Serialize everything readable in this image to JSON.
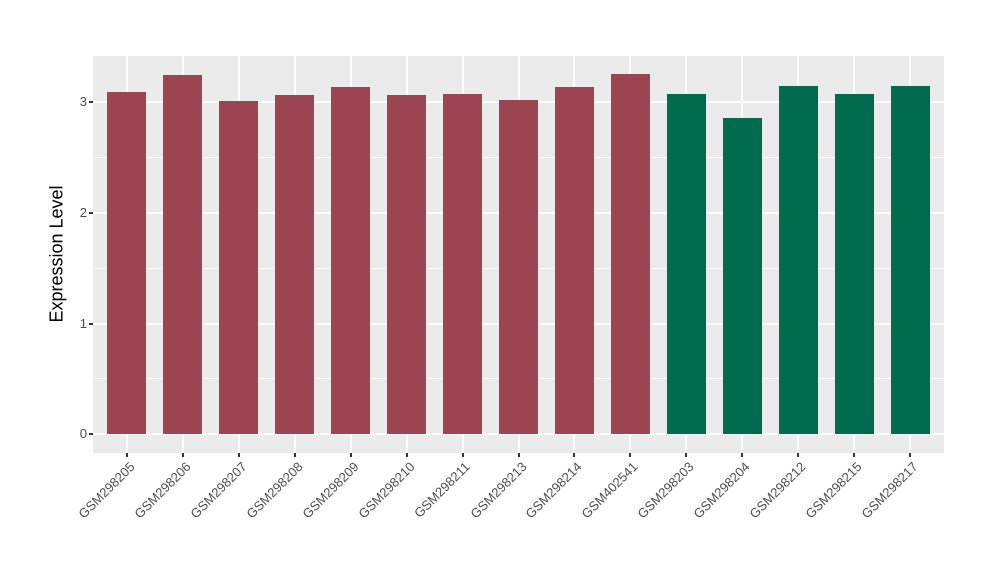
{
  "chart_data": {
    "type": "bar",
    "title": "",
    "xlabel": "",
    "ylabel": "Expression Level",
    "categories": [
      "GSM298205",
      "GSM298206",
      "GSM298207",
      "GSM298208",
      "GSM298209",
      "GSM298210",
      "GSM298211",
      "GSM298213",
      "GSM298214",
      "GSM402541",
      "GSM298203",
      "GSM298204",
      "GSM298212",
      "GSM298215",
      "GSM298217"
    ],
    "values": [
      3.09,
      3.25,
      3.01,
      3.07,
      3.14,
      3.07,
      3.08,
      3.02,
      3.14,
      3.26,
      3.08,
      2.86,
      3.15,
      3.08,
      3.15
    ],
    "bar_color_indices": [
      0,
      0,
      0,
      0,
      0,
      0,
      0,
      0,
      0,
      0,
      1,
      1,
      1,
      1,
      1
    ],
    "palette": [
      "#9C4451",
      "#006B4D"
    ],
    "yticks": [
      0,
      1,
      2,
      3
    ],
    "ytick_labels": [
      "0",
      "1",
      "2",
      "3"
    ],
    "minor_yticks": [
      0.5,
      1.5,
      2.5
    ],
    "ylim_panel": [
      -0.17,
      3.42
    ],
    "grid": "major and minor horizontal + major vertical, white on gray panel",
    "legend": "none",
    "panel_bg": "#EBEBEB",
    "grid_color": "#FFFFFF",
    "tick_mark_color": "#333333",
    "tick_label_color": "#4D4D4D",
    "axis_title_color": "#000000"
  }
}
